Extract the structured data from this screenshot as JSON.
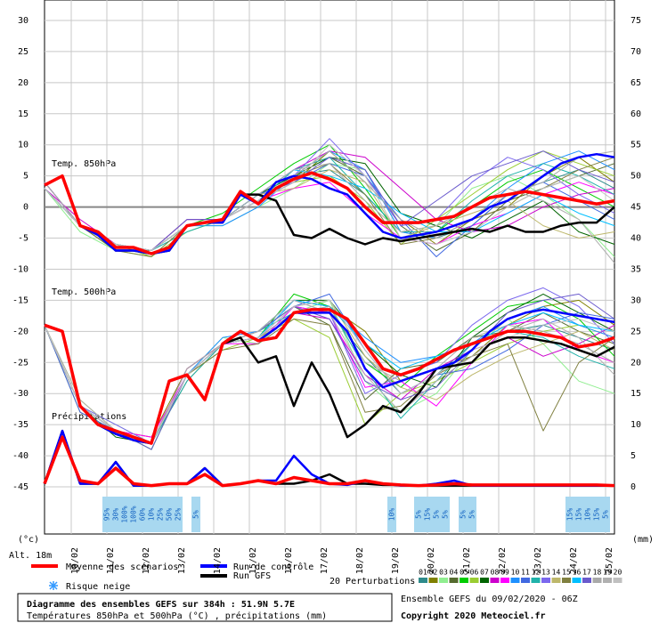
{
  "chart_data": {
    "type": "line",
    "title": "Diagramme des ensembles GEFS sur 384h : 51.9N 5.7E",
    "subtitle": "Températures 850hPa et 500hPa (°C) , précipitations (mm)",
    "run_info": "Ensemble GEFS du 09/02/2020 - 06Z",
    "copyright": "Copyright 2020 Meteociel.fr",
    "y_label": "(°c)",
    "y2_label": "(mm)",
    "altitude": "Alt. 18m",
    "panel_labels": [
      "Temp. 850hPa",
      "Temp. 500hPa",
      "Précipitations"
    ],
    "snow_label": "Risque neige",
    "xlim": [
      0,
      384
    ],
    "xticks": [
      {
        "value": 18,
        "label": "10/02"
      },
      {
        "value": 42,
        "label": "11/02"
      },
      {
        "value": 66,
        "label": "12/02"
      },
      {
        "value": 90,
        "label": "13/02"
      },
      {
        "value": 114,
        "label": "14/02"
      },
      {
        "value": 138,
        "label": "15/02"
      },
      {
        "value": 162,
        "label": "16/02"
      },
      {
        "value": 186,
        "label": "17/02"
      },
      {
        "value": 210,
        "label": "18/02"
      },
      {
        "value": 234,
        "label": "19/02"
      },
      {
        "value": 258,
        "label": "20/02"
      },
      {
        "value": 282,
        "label": "21/02"
      },
      {
        "value": 306,
        "label": "22/02"
      },
      {
        "value": 330,
        "label": "23/02"
      },
      {
        "value": 354,
        "label": "24/02"
      },
      {
        "value": 378,
        "label": "25/02"
      }
    ],
    "ylim": [
      -45,
      30
    ],
    "yticks": [
      -45,
      -40,
      -35,
      -30,
      -25,
      -20,
      -15,
      -10,
      -5,
      0,
      5,
      10,
      15,
      20,
      25,
      30
    ],
    "y2lim": [
      0,
      75
    ],
    "y2ticks": [
      0,
      5,
      10,
      15,
      20,
      25,
      30,
      35,
      40,
      45,
      50,
      55,
      60,
      65,
      70,
      75
    ],
    "grid": true,
    "x": [
      0,
      12,
      24,
      36,
      48,
      60,
      72,
      84,
      96,
      108,
      120,
      132,
      144,
      156,
      168,
      180,
      192,
      204,
      216,
      228,
      240,
      252,
      264,
      276,
      288,
      300,
      312,
      324,
      336,
      348,
      360,
      372,
      384
    ],
    "series": [
      {
        "name": "Moyenne des scénarios",
        "color": "#ff0000",
        "t850": [
          3.5,
          5,
          -3,
          -4,
          -6.5,
          -6.5,
          -7.5,
          -6.5,
          -3,
          -2.5,
          -2,
          2.5,
          0.5,
          3,
          4.5,
          5.5,
          4.5,
          3,
          0,
          -2.5,
          -2.5,
          -2.5,
          -2,
          -1.5,
          0,
          1.5,
          2,
          2.5,
          2,
          1.5,
          1,
          0.5,
          1
        ],
        "t500": [
          -19,
          -20,
          -32,
          -35,
          -36,
          -37,
          -38,
          -28,
          -27,
          -31,
          -22,
          -20,
          -21.5,
          -21,
          -17,
          -16.5,
          -16.5,
          -18,
          -22,
          -26,
          -27,
          -26,
          -24.5,
          -23,
          -22,
          -21,
          -20,
          -20,
          -20.5,
          -21,
          -22.5,
          -22,
          -21
        ],
        "precip": [
          0.5,
          8,
          1,
          0.5,
          3,
          0.5,
          0.2,
          0.5,
          0.5,
          2,
          0.2,
          0.5,
          1,
          0.5,
          1.5,
          1,
          0.5,
          0.5,
          1,
          0.5,
          0.3,
          0.2,
          0.3,
          0.5,
          0.3,
          0.3,
          0.3,
          0.3,
          0.3,
          0.3,
          0.3,
          0.3,
          0.2
        ]
      },
      {
        "name": "Run de contrôle",
        "color": "#0000ff",
        "t850": [
          3.5,
          5,
          -3,
          -4.5,
          -7,
          -7,
          -7.5,
          -7,
          -3,
          -2.5,
          -2.5,
          2,
          0.5,
          4,
          5,
          4.5,
          3,
          2,
          -1,
          -4,
          -5,
          -4.5,
          -4,
          -3,
          -2,
          0,
          1,
          3,
          5,
          7,
          8,
          8.5,
          8
        ],
        "t500": [
          -19,
          -20,
          -32,
          -35,
          -36.5,
          -37.5,
          -38,
          -28,
          -27,
          -31,
          -22,
          -20,
          -21.5,
          -19.5,
          -17,
          -17,
          -17,
          -20,
          -26,
          -29,
          -28,
          -27,
          -26,
          -25,
          -23,
          -20,
          -18,
          -17,
          -16.5,
          -17,
          -17.5,
          -18,
          -18.5
        ],
        "precip": [
          0.5,
          9,
          0.5,
          0.5,
          4,
          0.2,
          0.2,
          0.5,
          0.5,
          3,
          0.2,
          0.5,
          1,
          1,
          5,
          2,
          0.5,
          0.3,
          1,
          0.5,
          0.2,
          0.2,
          0.5,
          1,
          0.2,
          0.2,
          0.2,
          0.2,
          0.2,
          0.2,
          0.2,
          0.2,
          0.2
        ]
      },
      {
        "name": "Run GFS",
        "color": "#000000",
        "t850": [
          3.5,
          5,
          -3,
          -4.5,
          -7,
          -7,
          -7.5,
          -7,
          -3,
          -2.5,
          -2.5,
          2,
          2,
          1,
          -4.5,
          -5,
          -3.5,
          -5,
          -6,
          -5,
          -5.5,
          -5,
          -4.5,
          -4,
          -3.5,
          -4,
          -3,
          -4,
          -4,
          -3,
          -2.5,
          -2.5,
          0
        ],
        "t500": [
          -19,
          -20,
          -32,
          -35,
          -36.5,
          -37.5,
          -38,
          -28,
          -27,
          -31,
          -22,
          -21,
          -25,
          -24,
          -32,
          -25,
          -30,
          -37,
          -35,
          -32,
          -33,
          -30,
          -26,
          -25.5,
          -25,
          -22,
          -21,
          -21,
          -21.5,
          -22,
          -23,
          -24,
          -22.5
        ],
        "precip": [
          0.5,
          9,
          0.5,
          0.5,
          4,
          0.2,
          0.2,
          0.5,
          0.5,
          3,
          0.2,
          0.5,
          1,
          0.5,
          0.5,
          1,
          2,
          0.5,
          0.5,
          0.3,
          0.3,
          0.2,
          0.2,
          0.2,
          0.2,
          0.2,
          0.2,
          0.2,
          0.2,
          0.2,
          0.2,
          0.2,
          0.2
        ]
      }
    ],
    "perturbations": {
      "name": "20 Perturbations",
      "labels": [
        "01",
        "02",
        "03",
        "04",
        "05",
        "06",
        "07",
        "08",
        "09",
        "10",
        "11",
        "12",
        "13",
        "14",
        "15",
        "16",
        "17",
        "18",
        "19",
        "20"
      ],
      "colors": [
        "#2e8b8b",
        "#808000",
        "#90ee90",
        "#556b2f",
        "#00cc00",
        "#9acd32",
        "#006400",
        "#cc00cc",
        "#ff00ff",
        "#1e90ff",
        "#4169e1",
        "#20b2aa",
        "#7b68ee",
        "#bdb76b",
        "#808040",
        "#00bfff",
        "#6a5acd",
        "#a9a9a9",
        "#b0b0b0",
        "#c0c0c0"
      ],
      "x": [
        0,
        24,
        48,
        72,
        96,
        120,
        144,
        168,
        192,
        216,
        240,
        264,
        288,
        312,
        336,
        360,
        384
      ],
      "t850": [
        [
          3,
          -3,
          -6,
          -7,
          -3,
          -2,
          2,
          5,
          6,
          2,
          -4,
          -5,
          -3,
          2,
          4,
          6,
          3
        ],
        [
          4,
          -3,
          -6,
          -7,
          -2,
          -2,
          1,
          4,
          9,
          4,
          -2,
          -6,
          -2,
          0,
          5,
          8,
          4
        ],
        [
          3,
          -4,
          -7,
          -8,
          -3,
          -3,
          0,
          3,
          7,
          6,
          -4,
          -3,
          3,
          5,
          2,
          -2,
          -8
        ],
        [
          3,
          -3,
          -6,
          -7,
          -3,
          -2,
          2,
          6,
          8,
          5,
          -3,
          -7,
          -4,
          1,
          3,
          5,
          7
        ],
        [
          4,
          -3,
          -6,
          -7,
          -3,
          -1,
          3,
          7,
          10,
          3,
          -5,
          -4,
          0,
          4,
          6,
          3,
          0
        ],
        [
          3,
          -3,
          -6,
          -8,
          -4,
          -2,
          1,
          4,
          5,
          1,
          -6,
          -2,
          2,
          6,
          9,
          7,
          5
        ],
        [
          3,
          -3,
          -7,
          -7,
          -3,
          -2,
          2,
          5,
          8,
          7,
          -1,
          -3,
          -5,
          -2,
          1,
          -4,
          -6
        ],
        [
          3,
          -2,
          -6,
          -7,
          -2,
          -2,
          2,
          6,
          9,
          8,
          3,
          -2,
          -4,
          -3,
          0,
          2,
          3
        ],
        [
          4,
          -3,
          -6,
          -7,
          -3,
          -2,
          1,
          3,
          4,
          -1,
          -5,
          -6,
          -3,
          -1,
          2,
          4,
          2
        ],
        [
          3,
          -3,
          -6,
          -7,
          -3,
          -3,
          0,
          5,
          9,
          6,
          -4,
          -5,
          -2,
          3,
          7,
          9,
          6
        ],
        [
          3,
          -3,
          -6,
          -7,
          -3,
          -2,
          2,
          4,
          7,
          5,
          -2,
          -8,
          -3,
          2,
          4,
          1,
          -2
        ],
        [
          3,
          -3,
          -6,
          -7,
          -4,
          -2,
          1,
          6,
          8,
          2,
          -4,
          -4,
          1,
          5,
          7,
          5,
          2
        ],
        [
          4,
          -3,
          -6,
          -7,
          -3,
          -2,
          1,
          5,
          11,
          5,
          -3,
          -2,
          4,
          8,
          6,
          2,
          -1
        ],
        [
          3,
          -3,
          -6,
          -7,
          -3,
          -2,
          2,
          3,
          6,
          4,
          -5,
          -3,
          -1,
          1,
          -3,
          -5,
          -4
        ],
        [
          3,
          -3,
          -7,
          -8,
          -3,
          -2,
          1,
          5,
          7,
          2,
          -6,
          -5,
          -2,
          0,
          3,
          6,
          8
        ],
        [
          3,
          -3,
          -6,
          -7,
          -3,
          -2,
          2,
          6,
          5,
          3,
          -1,
          -4,
          -4,
          -1,
          2,
          -1,
          -3
        ],
        [
          3,
          -3,
          -6,
          -7,
          -2,
          -2,
          1,
          4,
          8,
          6,
          -3,
          1,
          5,
          7,
          9,
          6,
          4
        ],
        [
          4,
          -3,
          -6,
          -7,
          -3,
          -2,
          1,
          5,
          9,
          4,
          -2,
          -5,
          -2,
          2,
          4,
          8,
          9
        ],
        [
          3,
          -3,
          -6,
          -7,
          -3,
          -2,
          2,
          6,
          7,
          1,
          -4,
          -3,
          0,
          3,
          1,
          -2,
          -9
        ],
        [
          3,
          -3,
          -6,
          -7,
          -3,
          -2,
          1,
          4,
          10,
          5,
          -5,
          -6,
          -4,
          0,
          3,
          5,
          1
        ]
      ],
      "t500": [
        [
          -19,
          -32,
          -36,
          -38,
          -27,
          -22,
          -20,
          -16,
          -17,
          -24,
          -30,
          -27,
          -22,
          -20,
          -19,
          -21,
          -23
        ],
        [
          -19,
          -33,
          -36,
          -37,
          -26,
          -22,
          -20,
          -15,
          -16,
          -20,
          -28,
          -26,
          -24,
          -19,
          -16,
          -15,
          -19
        ],
        [
          -19,
          -32,
          -35,
          -38,
          -27,
          -21,
          -22,
          -17,
          -15,
          -28,
          -33,
          -30,
          -23,
          -18,
          -22,
          -28,
          -30
        ],
        [
          -19,
          -32,
          -36,
          -38,
          -28,
          -22,
          -20,
          -16,
          -19,
          -31,
          -26,
          -25,
          -21,
          -20,
          -17,
          -20,
          -22
        ],
        [
          -19,
          -32,
          -36,
          -39,
          -27,
          -22,
          -21,
          -14,
          -16,
          -25,
          -29,
          -24,
          -20,
          -16,
          -15,
          -18,
          -24
        ],
        [
          -19,
          -31,
          -36,
          -38,
          -27,
          -23,
          -21,
          -18,
          -21,
          -35,
          -30,
          -28,
          -25,
          -22,
          -20,
          -19,
          -21
        ],
        [
          -19,
          -32,
          -37,
          -38,
          -27,
          -22,
          -20,
          -15,
          -15,
          -22,
          -27,
          -29,
          -21,
          -17,
          -14,
          -17,
          -20
        ],
        [
          -19,
          -32,
          -36,
          -38,
          -26,
          -22,
          -21,
          -17,
          -18,
          -27,
          -31,
          -26,
          -23,
          -21,
          -24,
          -22,
          -19
        ],
        [
          -19,
          -32,
          -36,
          -37,
          -27,
          -22,
          -22,
          -16,
          -17,
          -29,
          -28,
          -32,
          -25,
          -19,
          -18,
          -23,
          -25
        ],
        [
          -19,
          -32,
          -36,
          -38,
          -27,
          -21,
          -20,
          -15,
          -16,
          -21,
          -25,
          -24,
          -22,
          -18,
          -16,
          -19,
          -21
        ],
        [
          -19,
          -33,
          -36,
          -38,
          -27,
          -22,
          -21,
          -16,
          -14,
          -23,
          -30,
          -27,
          -26,
          -23,
          -19,
          -17,
          -18
        ],
        [
          -19,
          -32,
          -36,
          -38,
          -28,
          -22,
          -20,
          -17,
          -16,
          -26,
          -34,
          -28,
          -22,
          -20,
          -21,
          -24,
          -26
        ],
        [
          -19,
          -32,
          -35,
          -38,
          -27,
          -22,
          -21,
          -15,
          -17,
          -30,
          -27,
          -25,
          -19,
          -15,
          -13,
          -16,
          -22
        ],
        [
          -19,
          -32,
          -36,
          -38,
          -27,
          -22,
          -20,
          -16,
          -15,
          -24,
          -29,
          -31,
          -27,
          -24,
          -22,
          -20,
          -23
        ],
        [
          -19,
          -32,
          -36,
          -38,
          -27,
          -23,
          -22,
          -18,
          -19,
          -33,
          -32,
          -27,
          -24,
          -22,
          -36,
          -25,
          -21
        ],
        [
          -19,
          -32,
          -36,
          -38,
          -27,
          -22,
          -21,
          -15,
          -16,
          -22,
          -26,
          -24,
          -22,
          -19,
          -17,
          -19,
          -20
        ],
        [
          -19,
          -32,
          -36,
          -39,
          -27,
          -22,
          -20,
          -16,
          -18,
          -28,
          -31,
          -29,
          -23,
          -17,
          -15,
          -14,
          -18
        ],
        [
          -19,
          -32,
          -36,
          -38,
          -26,
          -22,
          -21,
          -17,
          -16,
          -25,
          -28,
          -26,
          -21,
          -19,
          -20,
          -22,
          -25
        ],
        [
          -19,
          -31,
          -36,
          -38,
          -27,
          -22,
          -20,
          -15,
          -17,
          -27,
          -33,
          -28,
          -24,
          -20,
          -18,
          -21,
          -27
        ],
        [
          -19,
          -32,
          -36,
          -38,
          -27,
          -22,
          -21,
          -16,
          -15,
          -23,
          -30,
          -27,
          -23,
          -21,
          -19,
          -18,
          -20
        ]
      ]
    },
    "snow_risk": {
      "x": [
        42,
        48,
        54,
        60,
        66,
        72,
        78,
        84,
        90,
        102,
        234,
        252,
        258,
        264,
        270,
        282,
        288,
        354,
        360,
        366,
        372,
        378
      ],
      "values": [
        95,
        30,
        100,
        100,
        60,
        10,
        25,
        50,
        25,
        5,
        10,
        5,
        15,
        5,
        5,
        5,
        5,
        15,
        15,
        10,
        15,
        5
      ],
      "value_labels": [
        "95%",
        "30%",
        "100%",
        "100%",
        "60%",
        "10%",
        "25%",
        "50%",
        "25%",
        "5%",
        "10%",
        "5%",
        "15%",
        "5%",
        "5%",
        "5%",
        "5%",
        "15%",
        "15%",
        "10%",
        "15%",
        "5%"
      ]
    }
  }
}
